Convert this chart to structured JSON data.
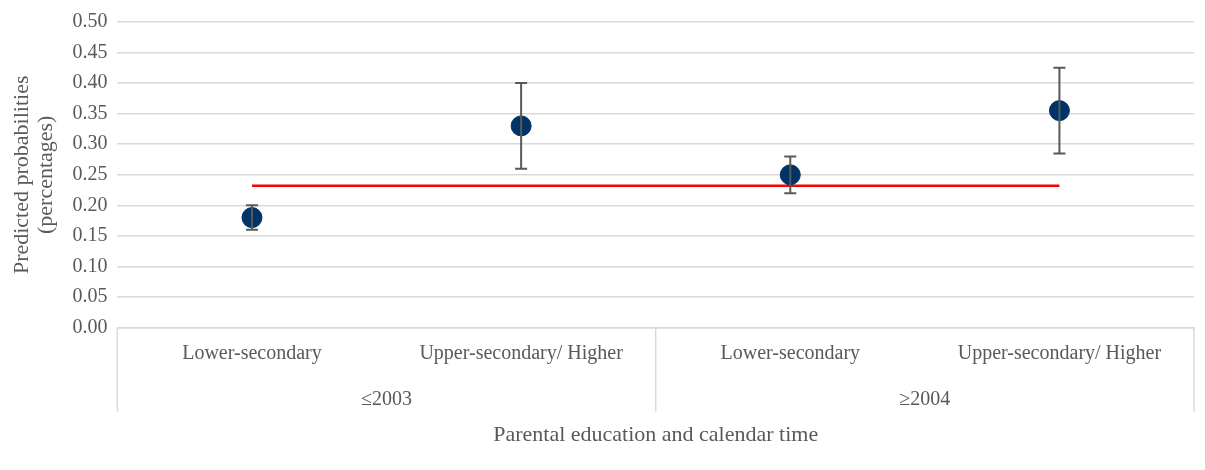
{
  "chart_data": {
    "type": "scatter",
    "categories": [
      "Lower-secondary",
      "Upper-secondary/ Higher",
      "Lower-secondary",
      "Upper-secondary/ Higher"
    ],
    "series": [
      {
        "color": "#003366",
        "values": [
          0.18,
          0.33,
          0.25,
          0.355
        ],
        "errors": [
          [
            0.16,
            0.2
          ],
          [
            0.26,
            0.4
          ],
          [
            0.22,
            0.28
          ],
          [
            0.285,
            0.425
          ]
        ],
        "marker": "circle"
      },
      {
        "type": "line",
        "color": "#ff0000",
        "values": [
          0.232,
          0.232,
          0.232,
          0.232
        ],
        "marker": "none"
      }
    ],
    "xlabel": "Parental education and calendar time",
    "ylabel": "Predicted probabilities (percentages)",
    "annotations": [
      "≤2003",
      "≥2004"
    ],
    "ylim": [
      0,
      0.5
    ],
    "yticks": [
      {
        "value": 0,
        "label": "0.00"
      },
      {
        "value": 0.05,
        "label": "0.05"
      },
      {
        "value": 0.1,
        "label": "0.10"
      },
      {
        "value": 0.15,
        "label": "0.15"
      },
      {
        "value": 0.2,
        "label": "0.20"
      },
      {
        "value": 0.25,
        "label": "0.25"
      },
      {
        "value": 0.3,
        "label": "0.30"
      },
      {
        "value": 0.35,
        "label": "0.35"
      },
      {
        "value": 0.4,
        "label": "0.40"
      },
      {
        "value": 0.45,
        "label": "0.45"
      },
      {
        "value": 0.5,
        "label": "0.50"
      }
    ],
    "grid": "y",
    "legend": false
  }
}
